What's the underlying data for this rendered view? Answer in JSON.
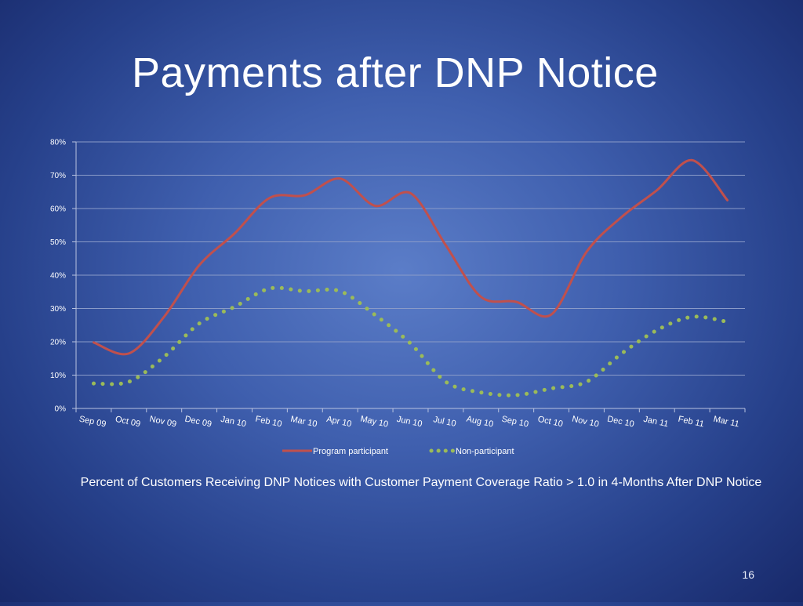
{
  "slide": {
    "title": "Payments after DNP Notice",
    "caption": "Percent of Customers Receiving DNP Notices with Customer Payment Coverage Ratio > 1.0 in 4-Months After DNP Notice",
    "page_number": "16"
  },
  "colors": {
    "program_participant": "#c0504d",
    "non_participant": "#9bbb59",
    "gridline": "#8a9bc8",
    "axis": "#b9c3e0"
  },
  "chart_data": {
    "type": "line",
    "title": "",
    "xlabel": "",
    "ylabel": "",
    "ylim": [
      0,
      0.8
    ],
    "y_ticks": [
      0,
      0.1,
      0.2,
      0.3,
      0.4,
      0.5,
      0.6,
      0.7,
      0.8
    ],
    "y_tick_labels": [
      "0%",
      "10%",
      "20%",
      "30%",
      "40%",
      "50%",
      "60%",
      "70%",
      "80%"
    ],
    "categories": [
      "Sep 09",
      "Oct 09",
      "Nov 09",
      "Dec 09",
      "Jan 10",
      "Feb 10",
      "Mar 10",
      "Apr 10",
      "May 10",
      "Jun 10",
      "Jul 10",
      "Aug 10",
      "Sep 10",
      "Oct 10",
      "Nov 10",
      "Dec 10",
      "Jan 11",
      "Feb 11",
      "Mar 11"
    ],
    "grid": true,
    "legend_position": "bottom",
    "series": [
      {
        "name": "Program participant",
        "style": "solid",
        "values": [
          0.198,
          0.165,
          0.275,
          0.43,
          0.525,
          0.632,
          0.64,
          0.69,
          0.608,
          0.646,
          0.49,
          0.335,
          0.32,
          0.282,
          0.47,
          0.575,
          0.655,
          0.745,
          0.625
        ]
      },
      {
        "name": "Non-participant",
        "style": "dotted",
        "values": [
          0.075,
          0.08,
          0.155,
          0.255,
          0.305,
          0.36,
          0.352,
          0.352,
          0.28,
          0.195,
          0.08,
          0.048,
          0.04,
          0.06,
          0.08,
          0.165,
          0.235,
          0.275,
          0.26
        ]
      }
    ]
  }
}
